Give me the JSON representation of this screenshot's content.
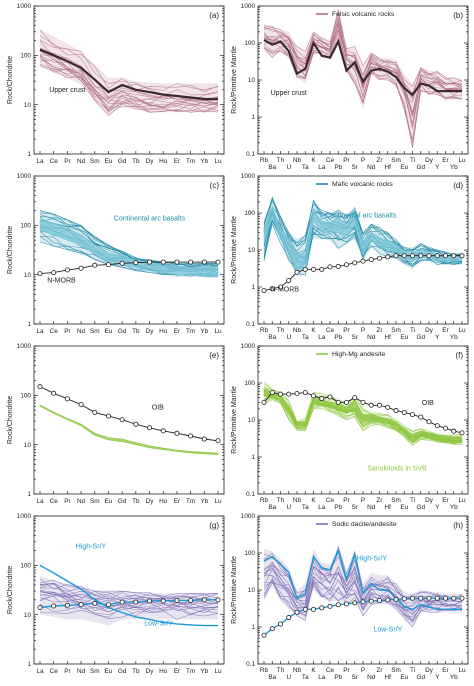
{
  "colors": {
    "felsic": "#b07088",
    "upper_crust": "#3a2a30",
    "mafic": "#1e8aa8",
    "mafic_fill": "#7ac6d8",
    "nmorb": "#222222",
    "andesite": "#8cc63e",
    "sodic": "#7e6eb4",
    "high_sr": "#1a9ad6",
    "low_sr": "#1a9ad6",
    "oib": "#222222"
  },
  "chart_data": [
    {
      "id": "a",
      "type": "line",
      "panel_letter": "(a)",
      "ylabel": "Rock/Chondrite",
      "yscale": "log",
      "ylim": [
        1,
        1000
      ],
      "categories": [
        "La",
        "Ce",
        "Pr",
        "Nd",
        "Sm",
        "Eu",
        "Gd",
        "Tb",
        "Dy",
        "Ho",
        "Er",
        "Tm",
        "Yb",
        "Lu"
      ],
      "series": [
        {
          "name": "Felsic volcanic rocks",
          "kind": "envelope",
          "values_high": [
            330,
            240,
            170,
            120,
            65,
            35,
            35,
            30,
            28,
            27,
            27,
            27,
            27,
            27
          ],
          "values_low": [
            60,
            45,
            35,
            25,
            12,
            6,
            9,
            8,
            7,
            7,
            7,
            7,
            7,
            7
          ]
        },
        {
          "name": "Upper crust",
          "kind": "reference",
          "values": [
            130,
            100,
            76,
            56,
            32,
            18,
            25,
            20,
            18,
            16,
            15,
            14,
            13,
            13
          ]
        }
      ],
      "annotations": [
        {
          "text": "Upper crust"
        }
      ]
    },
    {
      "id": "b",
      "type": "line",
      "panel_letter": "(b)",
      "ylabel": "Rock/Primitive Mantle",
      "yscale": "log",
      "ylim": [
        0.1,
        1000
      ],
      "categories": [
        "Rb",
        "Ba",
        "Th",
        "U",
        "Nb",
        "Ta",
        "K",
        "La",
        "Ce",
        "Pb",
        "Pr",
        "Sr",
        "P",
        "Nd",
        "Zr",
        "Hf",
        "Sm",
        "Eu",
        "Ti",
        "Gd",
        "Dy",
        "Y",
        "Er",
        "Yb",
        "Lu"
      ],
      "legend": [
        {
          "label": "Felsic volcanic rocks"
        }
      ],
      "series": [
        {
          "name": "Felsic volcanic rocks",
          "kind": "envelope",
          "values_high": [
            320,
            300,
            230,
            200,
            80,
            60,
            200,
            150,
            110,
            900,
            70,
            80,
            25,
            55,
            40,
            40,
            35,
            15,
            8,
            22,
            18,
            18,
            12,
            12,
            11
          ],
          "values_low": [
            60,
            40,
            60,
            40,
            12,
            8,
            50,
            50,
            40,
            100,
            18,
            8,
            1.5,
            15,
            10,
            10,
            7,
            1.5,
            0.15,
            5,
            4,
            4,
            3,
            3,
            3
          ]
        },
        {
          "name": "Upper crust",
          "kind": "reference",
          "values": [
            120,
            90,
            110,
            60,
            15,
            20,
            100,
            45,
            40,
            110,
            18,
            30,
            9,
            18,
            20,
            17,
            12,
            6,
            4,
            8,
            7,
            5,
            5,
            5,
            5
          ]
        }
      ],
      "annotations": [
        {
          "text": "Upper crust"
        }
      ]
    },
    {
      "id": "c",
      "type": "line",
      "panel_letter": "(c)",
      "ylabel": "Rock/Chondrite",
      "yscale": "log",
      "ylim": [
        1,
        1000
      ],
      "categories": [
        "La",
        "Ce",
        "Pr",
        "Nd",
        "Sm",
        "Eu",
        "Gd",
        "Tb",
        "Dy",
        "Ho",
        "Er",
        "Tm",
        "Yb",
        "Lu"
      ],
      "series": [
        {
          "name": "Mafic volcanic rocks",
          "kind": "envelope",
          "values_high": [
            200,
            170,
            130,
            100,
            60,
            40,
            30,
            22,
            20,
            18,
            17,
            17,
            17,
            17
          ],
          "values_low": [
            45,
            38,
            32,
            26,
            20,
            15,
            14,
            12,
            11,
            10,
            9,
            9,
            9,
            9
          ]
        },
        {
          "name": "Continental arc basalts",
          "kind": "band",
          "values_high": [
            130,
            110,
            85,
            65,
            40,
            28,
            24,
            20,
            18,
            16,
            15,
            14,
            14,
            14
          ],
          "values_low": [
            80,
            65,
            50,
            40,
            26,
            18,
            16,
            14,
            12,
            11,
            10,
            10,
            9,
            9
          ]
        },
        {
          "name": "N-MORB",
          "kind": "reference",
          "values": [
            10.5,
            11,
            12.5,
            13.5,
            15.5,
            16,
            17,
            17.5,
            18,
            18,
            18,
            18,
            18,
            18
          ]
        }
      ],
      "annotations": [
        {
          "text": "Continental arc basalts"
        },
        {
          "text": "N-MORB"
        }
      ]
    },
    {
      "id": "d",
      "type": "line",
      "panel_letter": "(d)",
      "ylabel": "Rock/Primitive Mantle",
      "yscale": "log",
      "ylim": [
        0.1,
        1000
      ],
      "categories": [
        "Rb",
        "Ba",
        "Th",
        "U",
        "Nb",
        "Ta",
        "K",
        "La",
        "Ce",
        "Pb",
        "Pr",
        "Sr",
        "P",
        "Nd",
        "Zr",
        "Hf",
        "Sm",
        "Eu",
        "Ti",
        "Gd",
        "Dy",
        "Y",
        "Er",
        "Yb",
        "Lu"
      ],
      "legend": [
        {
          "label": "Mafic volcanic rocks"
        }
      ],
      "series": [
        {
          "name": "Mafic volcanic rocks",
          "kind": "envelope",
          "values_high": [
            60,
            300,
            80,
            30,
            20,
            25,
            220,
            120,
            100,
            120,
            90,
            140,
            30,
            50,
            40,
            30,
            20,
            12,
            12,
            15,
            12,
            10,
            9,
            8,
            8
          ],
          "values_low": [
            5,
            50,
            15,
            5,
            2,
            2,
            20,
            20,
            18,
            10,
            15,
            20,
            5,
            12,
            8,
            6,
            6,
            4,
            3,
            5,
            5,
            4,
            4,
            4,
            4
          ]
        },
        {
          "name": "Continental arc basalts",
          "kind": "band",
          "values_high": [
            40,
            150,
            40,
            20,
            8,
            8,
            120,
            60,
            55,
            80,
            45,
            100,
            18,
            30,
            22,
            18,
            14,
            9,
            8,
            10,
            9,
            8,
            7,
            7,
            7
          ],
          "values_low": [
            15,
            80,
            20,
            8,
            3,
            3,
            60,
            30,
            28,
            30,
            20,
            50,
            8,
            18,
            12,
            10,
            9,
            6,
            5,
            7,
            6,
            5,
            5,
            5,
            5
          ]
        },
        {
          "name": "N-MORB",
          "kind": "reference",
          "values": [
            0.8,
            0.9,
            1.0,
            1.5,
            2.5,
            3.0,
            3.0,
            3.0,
            3.5,
            3.6,
            4,
            4.5,
            5,
            5.5,
            6,
            6.5,
            7,
            7,
            7,
            7,
            7,
            7,
            7,
            7,
            7
          ]
        }
      ],
      "annotations": [
        {
          "text": "Continental arc basalts"
        },
        {
          "text": "N-MORB"
        }
      ]
    },
    {
      "id": "e",
      "type": "line",
      "panel_letter": "(e)",
      "ylabel": "Rock/Chondrite",
      "yscale": "log",
      "ylim": [
        1,
        1000
      ],
      "categories": [
        "La",
        "Ce",
        "Pr",
        "Nd",
        "Sm",
        "Eu",
        "Gd",
        "Tb",
        "Dy",
        "Ho",
        "Er",
        "Tm",
        "Yb",
        "Lu"
      ],
      "series": [
        {
          "name": "High-Mg andesite",
          "kind": "band",
          "values_high": [
            64,
            46,
            34,
            26,
            17,
            14,
            13,
            11,
            9.5,
            8.5,
            7.8,
            7.3,
            7,
            6.8
          ],
          "values_low": [
            60,
            43,
            32,
            24,
            15.5,
            12.5,
            11.5,
            10,
            8.7,
            7.9,
            7.3,
            6.8,
            6.5,
            6.3
          ]
        },
        {
          "name": "OIB",
          "kind": "reference",
          "values": [
            150,
            110,
            85,
            65,
            45,
            38,
            32,
            26,
            22,
            19,
            17,
            15,
            13,
            12
          ]
        }
      ],
      "annotations": [
        {
          "text": "OIB"
        }
      ]
    },
    {
      "id": "f",
      "type": "line",
      "panel_letter": "(f)",
      "ylabel": "Rock/Primitive Mantle",
      "yscale": "log",
      "ylim": [
        0.1,
        1000
      ],
      "categories": [
        "Rb",
        "Ba",
        "Th",
        "U",
        "Nb",
        "Ta",
        "K",
        "La",
        "Ce",
        "Pb",
        "Pr",
        "Sr",
        "P",
        "Nd",
        "Zr",
        "Hf",
        "Sm",
        "Eu",
        "Ti",
        "Gd",
        "Dy",
        "Y",
        "Er",
        "Yb",
        "Lu"
      ],
      "legend": [
        {
          "label": "High-Mg andesite"
        }
      ],
      "series": [
        {
          "name": "High-Mg andesite",
          "kind": "envelope",
          "values_high": [
            110,
            70,
            60,
            35,
            10,
            12,
            60,
            55,
            45,
            40,
            30,
            45,
            20,
            18,
            16,
            14,
            10,
            7,
            5,
            6,
            5,
            4.5,
            4,
            4,
            4
          ],
          "values_low": [
            25,
            35,
            25,
            10,
            5,
            5,
            20,
            20,
            16,
            12,
            10,
            12,
            5,
            7,
            7,
            6,
            5,
            3.5,
            2,
            3,
            2.8,
            2.5,
            2.3,
            2.2,
            2.2
          ]
        },
        {
          "name": "Sanukitoids in SVB",
          "kind": "band",
          "values_high": [
            70,
            55,
            45,
            22,
            9,
            9,
            40,
            35,
            30,
            28,
            22,
            35,
            14,
            14,
            12,
            11,
            9,
            6,
            4,
            5,
            4.5,
            4,
            3.5,
            3.5,
            3.5
          ],
          "values_low": [
            45,
            40,
            35,
            15,
            7,
            7,
            28,
            25,
            22,
            18,
            15,
            20,
            9,
            10,
            9,
            8,
            7,
            4.5,
            2.5,
            3.6,
            3.2,
            2.9,
            2.6,
            2.5,
            2.5
          ]
        },
        {
          "name": "OIB",
          "kind": "reference",
          "values": [
            30,
            55,
            50,
            50,
            52,
            55,
            45,
            38,
            42,
            30,
            30,
            40,
            30,
            25,
            25,
            22,
            18,
            16,
            14,
            12,
            9,
            7,
            6,
            5,
            4.5
          ]
        }
      ],
      "annotations": [
        {
          "text": "OIB"
        },
        {
          "text": "Sanukitoids in SVB"
        }
      ]
    },
    {
      "id": "g",
      "type": "line",
      "panel_letter": "(g)",
      "ylabel": "Rock/Chondrite",
      "yscale": "log",
      "ylim": [
        1,
        1000
      ],
      "categories": [
        "La",
        "Ce",
        "Pr",
        "Nd",
        "Sm",
        "Eu",
        "Gd",
        "Tb",
        "Dy",
        "Ho",
        "Er",
        "Tm",
        "Yb",
        "Lu"
      ],
      "series": [
        {
          "name": "Sodic dacite/andesite",
          "kind": "envelope",
          "values_high": [
            60,
            50,
            42,
            38,
            32,
            30,
            30,
            28,
            28,
            27,
            27,
            27,
            27,
            27
          ],
          "values_low": [
            10,
            9,
            8,
            8,
            7,
            6,
            8,
            8,
            8,
            8,
            8,
            8,
            8,
            8
          ]
        },
        {
          "name": "High-Sr/Y",
          "kind": "reference",
          "values": [
            100,
            70,
            48,
            33,
            20,
            14,
            11,
            9,
            8,
            7,
            6.5,
            6.2,
            6,
            6
          ]
        },
        {
          "name": "Low-Sr/Y",
          "kind": "reference",
          "values": [
            14,
            15,
            15.5,
            16,
            17,
            16,
            18,
            18,
            19,
            19,
            19.5,
            19.5,
            20,
            20
          ]
        }
      ],
      "annotations": [
        {
          "text": "High-Sr/Y"
        },
        {
          "text": "Low-Sr/Y"
        }
      ]
    },
    {
      "id": "h",
      "type": "line",
      "panel_letter": "(h)",
      "ylabel": "Rock/Primitive Mantle",
      "yscale": "log",
      "ylim": [
        0.1,
        1000
      ],
      "categories": [
        "Rb",
        "Ba",
        "Th",
        "U",
        "Nb",
        "Ta",
        "K",
        "La",
        "Ce",
        "Pb",
        "Pr",
        "Sr",
        "P",
        "Nd",
        "Zr",
        "Hf",
        "Sm",
        "Eu",
        "Ti",
        "Gd",
        "Dy",
        "Y",
        "Er",
        "Yb",
        "Lu"
      ],
      "legend": [
        {
          "label": "Sodic dacite/andesite"
        }
      ],
      "series": [
        {
          "name": "Sodic dacite/andesite",
          "kind": "envelope",
          "values_high": [
            130,
            110,
            70,
            40,
            10,
            15,
            130,
            55,
            50,
            150,
            30,
            120,
            15,
            30,
            25,
            25,
            15,
            9,
            8,
            10,
            9,
            9,
            8,
            8,
            8
          ],
          "values_low": [
            5,
            12,
            5,
            3,
            2,
            1.5,
            10,
            6,
            5,
            5,
            4,
            5,
            2,
            4,
            4,
            4,
            3,
            1.5,
            1,
            2.5,
            2.5,
            2.5,
            2.5,
            2.5,
            2.5
          ]
        },
        {
          "name": "High-Sr/Y",
          "kind": "reference",
          "values": [
            60,
            80,
            50,
            30,
            6,
            8,
            80,
            40,
            35,
            120,
            20,
            90,
            8,
            15,
            10,
            10,
            6,
            3.5,
            3,
            4,
            3.5,
            3,
            3,
            3,
            3
          ]
        },
        {
          "name": "Low-Sr/Y",
          "kind": "reference",
          "values": [
            0.6,
            0.9,
            1.2,
            1.8,
            2.5,
            3,
            3,
            3.3,
            3.6,
            4,
            4.2,
            4.5,
            4.8,
            5,
            5.2,
            5.4,
            5.6,
            5.8,
            6,
            6,
            6,
            6,
            6,
            6,
            6
          ]
        }
      ],
      "annotations": [
        {
          "text": "High-Sr/Y"
        },
        {
          "text": "Low-Sr/Y"
        }
      ]
    }
  ]
}
